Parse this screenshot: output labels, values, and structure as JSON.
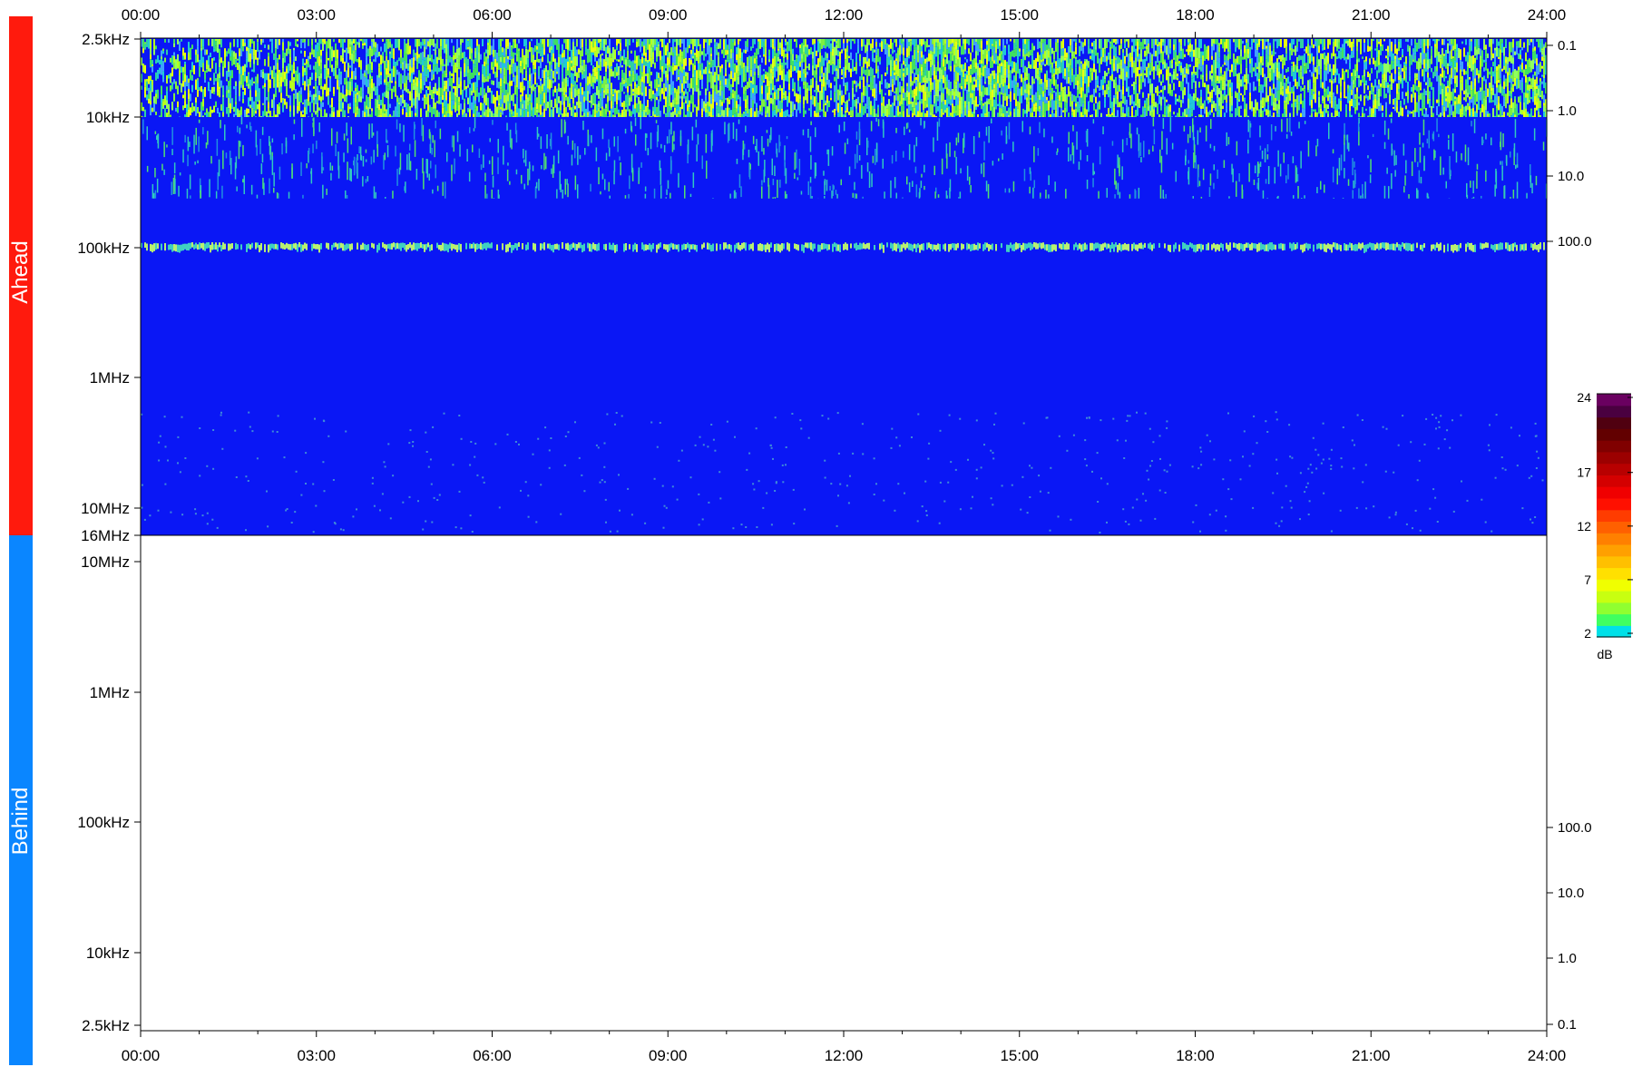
{
  "colors": {
    "ahead": "#ff1a0d",
    "behind": "#0a86ff",
    "background": "#0a17f5",
    "colorbar": [
      "#00e0e8",
      "#40ff60",
      "#90ff30",
      "#c8ff10",
      "#f0ff00",
      "#ffe000",
      "#ffc000",
      "#ffa000",
      "#ff8000",
      "#ff6000",
      "#ff3c00",
      "#ff1000",
      "#f00000",
      "#d40000",
      "#b80000",
      "#9c0000",
      "#800000",
      "#620000",
      "#500010",
      "#4a0040",
      "#6a0060"
    ]
  },
  "panels": {
    "ahead": {
      "label": "Ahead"
    },
    "behind": {
      "label": "Behind"
    }
  },
  "chart_data": {
    "type": "heatmap",
    "title": "",
    "x_ticks": [
      "00:00",
      "03:00",
      "06:00",
      "09:00",
      "12:00",
      "15:00",
      "18:00",
      "21:00",
      "24:00"
    ],
    "x_range_hours": [
      0,
      24
    ],
    "ahead": {
      "y_labels_left": [
        "2.5kHz",
        "10kHz",
        "100kHz",
        "1MHz",
        "10MHz",
        "16MHz"
      ],
      "y_labels_right": [
        "0.1",
        "1.0",
        "10.0",
        "100.0"
      ],
      "y_scale": "log",
      "features": [
        {
          "name": "low-frequency band",
          "from": "2.5kHz",
          "to": "10kHz",
          "level_db": "2-6"
        },
        {
          "name": "sparse emissions",
          "from": "10kHz",
          "to": "40kHz",
          "level_db": "2-4"
        },
        {
          "name": "narrow emission line",
          "at": "100kHz",
          "level_db": "2-5"
        }
      ]
    },
    "behind": {
      "y_labels_left": [
        "10MHz",
        "1MHz",
        "100kHz",
        "10kHz",
        "2.5kHz"
      ],
      "y_labels_right": [
        "100.0",
        "10.0",
        "1.0",
        "0.1"
      ],
      "y_scale": "log",
      "features": []
    },
    "colorbar": {
      "ticks": [
        "24",
        "17",
        "12",
        "7",
        "2"
      ],
      "values": [
        24,
        17,
        12,
        7,
        2
      ],
      "range": [
        2,
        24
      ],
      "unit": "dB"
    }
  }
}
